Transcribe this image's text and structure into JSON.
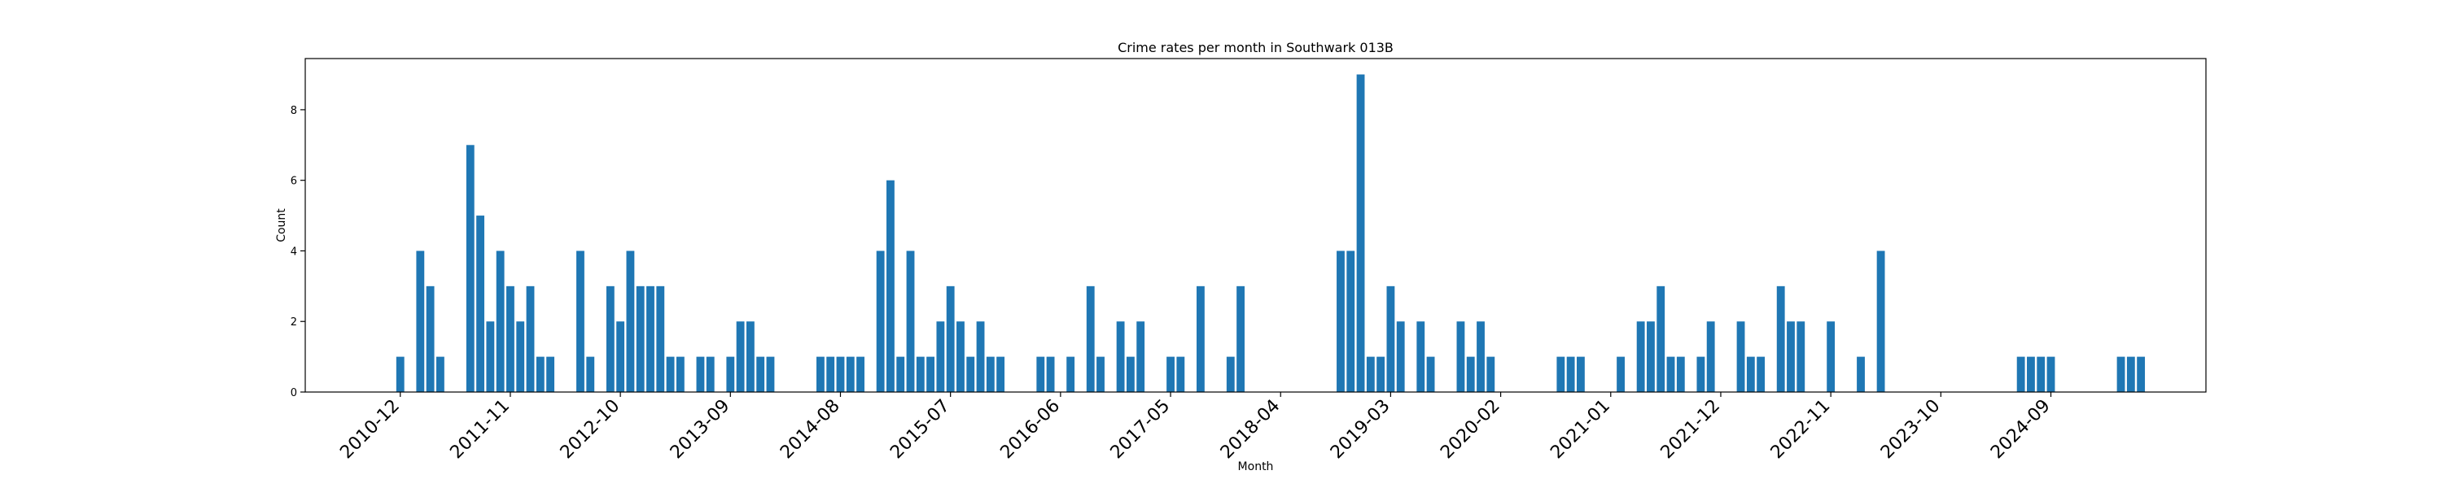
{
  "chart_data": {
    "type": "bar",
    "title": "Crime rates per month in Southwark 013B",
    "xlabel": "Month",
    "ylabel": "Count",
    "ylim": [
      0,
      9.45
    ],
    "yticks": [
      0,
      2,
      4,
      6,
      8
    ],
    "xlim": [
      -9.5,
      180.5
    ],
    "xtick_labels": [
      "2010-12",
      "2011-11",
      "2012-10",
      "2013-09",
      "2014-08",
      "2015-07",
      "2016-06",
      "2017-05",
      "2018-04",
      "2019-03",
      "2020-02",
      "2021-01",
      "2021-12",
      "2022-11",
      "2023-10",
      "2024-09"
    ],
    "xtick_positions": [
      0,
      11,
      22,
      33,
      44,
      55,
      66,
      77,
      88,
      99,
      110,
      121,
      132,
      143,
      154,
      165
    ],
    "grid": false,
    "legend": "none",
    "x": [
      0,
      2,
      3,
      4,
      7,
      8,
      9,
      10,
      11,
      12,
      13,
      14,
      15,
      18,
      19,
      21,
      22,
      23,
      24,
      25,
      26,
      27,
      28,
      30,
      31,
      33,
      34,
      35,
      36,
      37,
      42,
      43,
      44,
      45,
      46,
      48,
      49,
      50,
      51,
      52,
      53,
      54,
      55,
      56,
      57,
      58,
      59,
      60,
      64,
      65,
      67,
      69,
      70,
      72,
      73,
      74,
      77,
      78,
      80,
      83,
      84,
      94,
      95,
      96,
      97,
      98,
      99,
      100,
      102,
      103,
      106,
      107,
      108,
      109,
      116,
      117,
      118,
      122,
      124,
      125,
      126,
      127,
      128,
      130,
      131,
      134,
      135,
      136,
      138,
      139,
      140,
      143,
      146,
      148,
      162,
      163,
      164,
      165,
      172,
      173,
      174
    ],
    "values": [
      1,
      4,
      3,
      1,
      7,
      5,
      2,
      4,
      3,
      2,
      3,
      1,
      1,
      4,
      1,
      3,
      2,
      4,
      3,
      3,
      3,
      1,
      1,
      1,
      1,
      1,
      2,
      2,
      1,
      1,
      1,
      1,
      1,
      1,
      1,
      4,
      6,
      1,
      4,
      1,
      1,
      2,
      3,
      2,
      1,
      2,
      1,
      1,
      1,
      1,
      1,
      3,
      1,
      2,
      1,
      2,
      1,
      1,
      3,
      1,
      3,
      4,
      4,
      9,
      1,
      1,
      3,
      2,
      2,
      1,
      2,
      1,
      2,
      1,
      1,
      1,
      1,
      1,
      2,
      2,
      3,
      1,
      1,
      1,
      2,
      2,
      1,
      1,
      3,
      2,
      2,
      2,
      1,
      4,
      1,
      1,
      1,
      1,
      1,
      1,
      1
    ]
  }
}
